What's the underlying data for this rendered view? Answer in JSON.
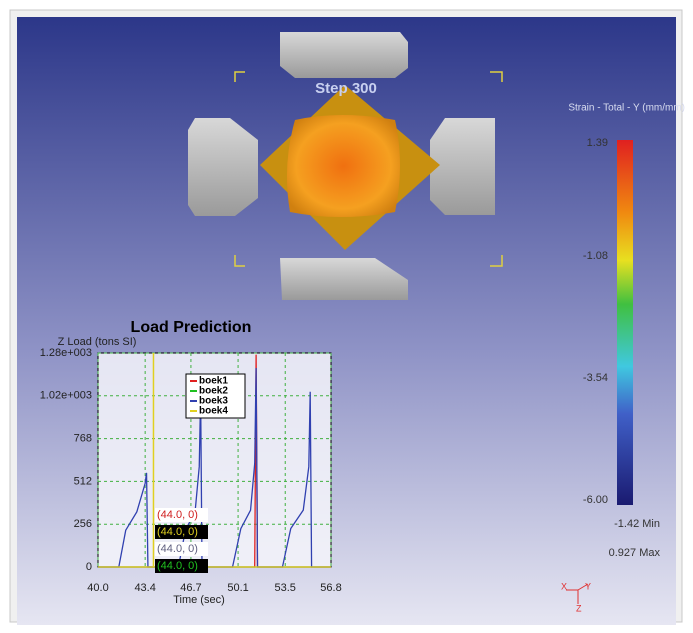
{
  "viewport": {
    "step": "Step 300",
    "legend_title": "Strain - Total - Y (mm/mm)",
    "triad": [
      "X",
      "Y",
      "Z"
    ]
  },
  "colorbar": {
    "labels": [
      "1.39",
      "-1.08",
      "-3.54",
      "-6.00"
    ],
    "min": "-1.42  Min",
    "max": "0.927  Max"
  },
  "chart_data": {
    "type": "line",
    "title": "Load Prediction",
    "y_label": "Z Load (tons SI)",
    "x_label": "Time (sec)",
    "xlim": [
      40,
      56.8
    ],
    "xticks": [
      {
        "value": 40,
        "label": "40.0"
      },
      43.4,
      46.7,
      50.1,
      53.5,
      56.8
    ],
    "ylim": [
      0,
      1280
    ],
    "yticks": [
      0,
      256,
      512,
      768,
      {
        "value": 1024,
        "label": "1.02e+003"
      },
      {
        "value": 1280,
        "label": "1.28e+003"
      }
    ],
    "grid": true,
    "cursor_x": 44.0,
    "series": [
      {
        "name": "boek1",
        "color": "#e02020",
        "x": [
          40,
          51.3,
          51.4,
          51.5,
          56.8
        ],
        "values": [
          0,
          0,
          1270,
          0,
          0
        ]
      },
      {
        "name": "boek2",
        "color": "#20c020",
        "x": [
          40,
          56.8
        ],
        "values": [
          0,
          0
        ]
      },
      {
        "name": "boek3",
        "color": "#3040b0",
        "x": [
          40,
          41.5,
          42.0,
          42.8,
          43.4,
          43.5,
          43.6,
          45.8,
          46.3,
          47.0,
          47.3,
          47.4,
          47.5,
          49.7,
          50.3,
          51.0,
          51.3,
          51.4,
          51.5,
          53.3,
          53.9,
          54.8,
          55.2,
          55.3,
          55.4,
          56.8
        ],
        "values": [
          0,
          0,
          220,
          330,
          500,
          563,
          0,
          0,
          220,
          330,
          600,
          1030,
          0,
          0,
          230,
          340,
          620,
          1190,
          0,
          0,
          230,
          340,
          600,
          1048,
          0,
          0
        ]
      },
      {
        "name": "boek4",
        "color": "#e0d020",
        "x": [
          40,
          44.0,
          56.8
        ],
        "values": [
          0,
          0,
          0
        ]
      }
    ],
    "annotations": [
      {
        "text": "(44.0, 0)",
        "color": "#d02020",
        "bg": "#ffffff"
      },
      {
        "text": "(44.0, 0)",
        "color": "#e0d020",
        "bg": "#000000"
      },
      {
        "text": "(44.0, 0)",
        "color": "#606080",
        "bg": "#ffffff"
      },
      {
        "text": "(44.0, 0)",
        "color": "#20c020",
        "bg": "#000000"
      }
    ]
  }
}
